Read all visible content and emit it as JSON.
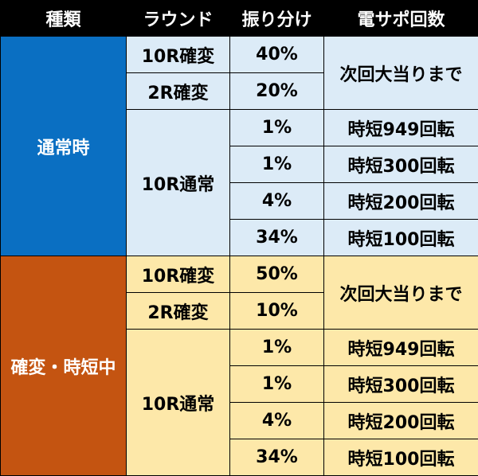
{
  "headers": {
    "type": "種類",
    "round": "ラウンド",
    "allocation": "振り分け",
    "densapo": "電サポ回数"
  },
  "sections": [
    {
      "category": "通常時",
      "color": "#0a6fc2",
      "row_bg": "#dcebf7",
      "rows": [
        {
          "round": "10R確変",
          "pct": "40%",
          "densapo": "次回大当りまで"
        },
        {
          "round": "2R確変",
          "pct": "20%"
        },
        {
          "round": "10R通常",
          "pct": "1%",
          "densapo": "時短949回転"
        },
        {
          "pct": "1%",
          "densapo": "時短300回転"
        },
        {
          "pct": "4%",
          "densapo": "時短200回転"
        },
        {
          "pct": "34%",
          "densapo": "時短100回転"
        }
      ]
    },
    {
      "category": "確変・時短中",
      "color": "#c45411",
      "row_bg": "#fde8a9",
      "rows": [
        {
          "round": "10R確変",
          "pct": "50%",
          "densapo": "次回大当りまで"
        },
        {
          "round": "2R確変",
          "pct": "10%"
        },
        {
          "round": "10R通常",
          "pct": "1%",
          "densapo": "時短949回転"
        },
        {
          "pct": "1%",
          "densapo": "時短300回転"
        },
        {
          "pct": "4%",
          "densapo": "時短200回転"
        },
        {
          "pct": "34%",
          "densapo": "時短100回転"
        }
      ]
    }
  ]
}
